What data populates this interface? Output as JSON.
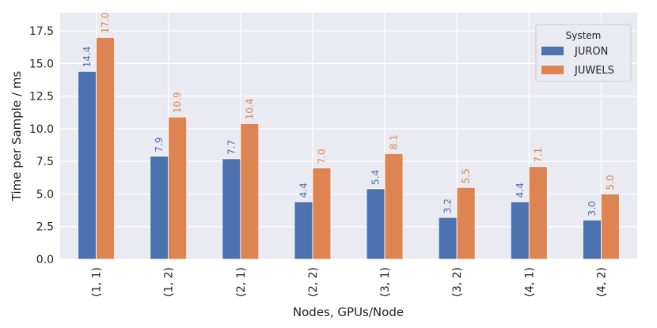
{
  "chart_data": {
    "type": "bar",
    "xlabel": "Nodes, GPUs/Node",
    "ylabel": "Time per Sample / ms",
    "categories": [
      "(1, 1)",
      "(1, 2)",
      "(2, 1)",
      "(2, 2)",
      "(3, 1)",
      "(3, 2)",
      "(4, 1)",
      "(4, 2)"
    ],
    "series": [
      {
        "name": "JURON",
        "color": "#4c72b0",
        "values": [
          14.4,
          7.9,
          7.7,
          4.4,
          5.4,
          3.2,
          4.4,
          3.0
        ]
      },
      {
        "name": "JUWELS",
        "color": "#dd8452",
        "values": [
          17.0,
          10.9,
          10.4,
          7.0,
          8.1,
          5.5,
          7.1,
          5.0
        ]
      }
    ],
    "data_labels": [
      [
        "14.4",
        "7.9",
        "7.7",
        "4.4",
        "5.4",
        "3.2",
        "4.4",
        "3.0"
      ],
      [
        "17.0",
        "10.9",
        "10.4",
        "7.0",
        "8.1",
        "5.5",
        "7.1",
        "5.0"
      ]
    ],
    "yticks": [
      "0.0",
      "2.5",
      "5.0",
      "7.5",
      "10.0",
      "12.5",
      "15.0",
      "17.5"
    ],
    "ylim": [
      0,
      18.9
    ],
    "legend": {
      "title": "System",
      "placement": "top-right"
    },
    "grid": true,
    "background": "#eaeaf2"
  }
}
